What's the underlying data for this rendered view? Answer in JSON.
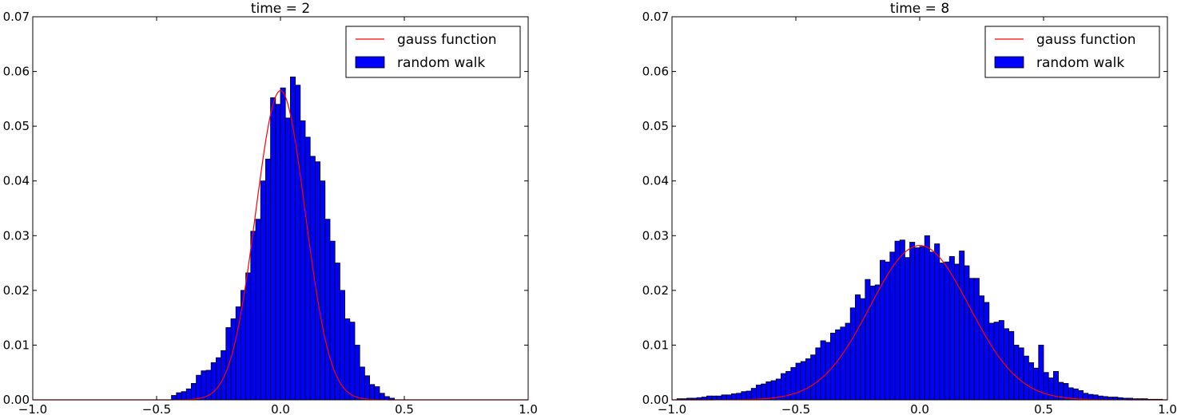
{
  "chart_data": [
    {
      "type": "bar",
      "title": "time = 2",
      "xlim": [
        -1.0,
        1.0
      ],
      "ylim": [
        0,
        0.07
      ],
      "xticks": [
        "−1.0",
        "−0.5",
        "0.0",
        "0.5",
        "1.0"
      ],
      "yticks": [
        "0.00",
        "0.01",
        "0.02",
        "0.03",
        "0.04",
        "0.05",
        "0.06",
        "0.07"
      ],
      "legend_position": "top-right",
      "grid": false,
      "series": [
        {
          "name": "random walk",
          "kind": "histogram",
          "color": "#0000ff",
          "bin_width": 0.02,
          "bins": [
            [
              -0.44,
              0.0008
            ],
            [
              -0.42,
              0.0013
            ],
            [
              -0.4,
              0.0015
            ],
            [
              -0.38,
              0.002
            ],
            [
              -0.36,
              0.003
            ],
            [
              -0.34,
              0.0045
            ],
            [
              -0.32,
              0.0053
            ],
            [
              -0.3,
              0.0054
            ],
            [
              -0.28,
              0.0068
            ],
            [
              -0.26,
              0.0077
            ],
            [
              -0.24,
              0.009
            ],
            [
              -0.22,
              0.0132
            ],
            [
              -0.2,
              0.0148
            ],
            [
              -0.18,
              0.017
            ],
            [
              -0.16,
              0.02
            ],
            [
              -0.14,
              0.0232
            ],
            [
              -0.12,
              0.0308
            ],
            [
              -0.1,
              0.033
            ],
            [
              -0.08,
              0.04
            ],
            [
              -0.06,
              0.044
            ],
            [
              -0.04,
              0.0552
            ],
            [
              -0.02,
              0.054
            ],
            [
              0.0,
              0.057
            ],
            [
              0.02,
              0.0515
            ],
            [
              0.04,
              0.059
            ],
            [
              0.06,
              0.0575
            ],
            [
              0.08,
              0.051
            ],
            [
              0.1,
              0.048
            ],
            [
              0.12,
              0.0445
            ],
            [
              0.14,
              0.0435
            ],
            [
              0.16,
              0.04
            ],
            [
              0.18,
              0.033
            ],
            [
              0.2,
              0.029
            ],
            [
              0.22,
              0.025
            ],
            [
              0.24,
              0.02
            ],
            [
              0.26,
              0.0148
            ],
            [
              0.28,
              0.0142
            ],
            [
              0.3,
              0.01
            ],
            [
              0.32,
              0.006
            ],
            [
              0.34,
              0.0044
            ],
            [
              0.36,
              0.0028
            ],
            [
              0.38,
              0.0024
            ],
            [
              0.4,
              0.0012
            ],
            [
              0.42,
              0.0006
            ],
            [
              0.44,
              0.0003
            ]
          ]
        },
        {
          "name": "gauss function",
          "kind": "line",
          "color": "#ff0000",
          "amplitude": 0.0565,
          "mean": 0.0,
          "sigma": 0.1
        }
      ]
    },
    {
      "type": "bar",
      "title": "time = 8",
      "xlim": [
        -1.0,
        1.0
      ],
      "ylim": [
        0,
        0.07
      ],
      "xticks": [
        "−1.0",
        "−0.5",
        "0.0",
        "0.5",
        "1.0"
      ],
      "yticks": [
        "0.00",
        "0.01",
        "0.02",
        "0.03",
        "0.04",
        "0.05",
        "0.06",
        "0.07"
      ],
      "legend_position": "top-right",
      "grid": false,
      "series": [
        {
          "name": "random walk",
          "kind": "histogram",
          "color": "#0000ff",
          "bin_width": 0.02,
          "bins": [
            [
              -0.98,
              0.0002
            ],
            [
              -0.96,
              0.0002
            ],
            [
              -0.94,
              0.0003
            ],
            [
              -0.92,
              0.0003
            ],
            [
              -0.9,
              0.0004
            ],
            [
              -0.88,
              0.0005
            ],
            [
              -0.86,
              0.0007
            ],
            [
              -0.84,
              0.0007
            ],
            [
              -0.82,
              0.0007
            ],
            [
              -0.8,
              0.0009
            ],
            [
              -0.78,
              0.0009
            ],
            [
              -0.76,
              0.0011
            ],
            [
              -0.74,
              0.0012
            ],
            [
              -0.72,
              0.0015
            ],
            [
              -0.7,
              0.0016
            ],
            [
              -0.68,
              0.0021
            ],
            [
              -0.66,
              0.0027
            ],
            [
              -0.64,
              0.0029
            ],
            [
              -0.62,
              0.0033
            ],
            [
              -0.6,
              0.0035
            ],
            [
              -0.58,
              0.0038
            ],
            [
              -0.56,
              0.0048
            ],
            [
              -0.54,
              0.0052
            ],
            [
              -0.52,
              0.0059
            ],
            [
              -0.5,
              0.0067
            ],
            [
              -0.48,
              0.007
            ],
            [
              -0.46,
              0.0075
            ],
            [
              -0.44,
              0.0082
            ],
            [
              -0.42,
              0.0095
            ],
            [
              -0.4,
              0.0108
            ],
            [
              -0.38,
              0.0105
            ],
            [
              -0.36,
              0.0122
            ],
            [
              -0.34,
              0.0128
            ],
            [
              -0.32,
              0.0133
            ],
            [
              -0.3,
              0.014
            ],
            [
              -0.28,
              0.0168
            ],
            [
              -0.26,
              0.0192
            ],
            [
              -0.24,
              0.0185
            ],
            [
              -0.22,
              0.022
            ],
            [
              -0.2,
              0.0208
            ],
            [
              -0.18,
              0.021
            ],
            [
              -0.16,
              0.0255
            ],
            [
              -0.14,
              0.0252
            ],
            [
              -0.12,
              0.027
            ],
            [
              -0.1,
              0.029
            ],
            [
              -0.08,
              0.0292
            ],
            [
              -0.06,
              0.026
            ],
            [
              -0.04,
              0.0288
            ],
            [
              -0.02,
              0.0278
            ],
            [
              0.0,
              0.028
            ],
            [
              0.02,
              0.03
            ],
            [
              0.04,
              0.027
            ],
            [
              0.06,
              0.0285
            ],
            [
              0.08,
              0.025
            ],
            [
              0.1,
              0.0252
            ],
            [
              0.12,
              0.0262
            ],
            [
              0.14,
              0.0248
            ],
            [
              0.16,
              0.0272
            ],
            [
              0.18,
              0.0245
            ],
            [
              0.2,
              0.0222
            ],
            [
              0.22,
              0.0222
            ],
            [
              0.24,
              0.019
            ],
            [
              0.26,
              0.0178
            ],
            [
              0.28,
              0.014
            ],
            [
              0.3,
              0.0142
            ],
            [
              0.32,
              0.0145
            ],
            [
              0.34,
              0.013
            ],
            [
              0.36,
              0.0125
            ],
            [
              0.38,
              0.01
            ],
            [
              0.4,
              0.0095
            ],
            [
              0.42,
              0.008
            ],
            [
              0.44,
              0.0068
            ],
            [
              0.46,
              0.0058
            ],
            [
              0.48,
              0.01
            ],
            [
              0.5,
              0.005
            ],
            [
              0.52,
              0.004
            ],
            [
              0.54,
              0.0052
            ],
            [
              0.56,
              0.0032
            ],
            [
              0.58,
              0.003
            ],
            [
              0.6,
              0.0022
            ],
            [
              0.62,
              0.002
            ],
            [
              0.64,
              0.0017
            ],
            [
              0.66,
              0.0012
            ],
            [
              0.68,
              0.001
            ],
            [
              0.7,
              0.0009
            ],
            [
              0.72,
              0.0007
            ],
            [
              0.74,
              0.0006
            ],
            [
              0.76,
              0.0005
            ],
            [
              0.78,
              0.0005
            ],
            [
              0.8,
              0.0004
            ],
            [
              0.82,
              0.0003
            ],
            [
              0.84,
              0.0003
            ],
            [
              0.86,
              0.0002
            ],
            [
              0.88,
              0.0002
            ],
            [
              0.9,
              0.0002
            ],
            [
              0.92,
              0.0001
            ],
            [
              0.94,
              0.0001
            ],
            [
              0.96,
              0.0001
            ]
          ]
        },
        {
          "name": "gauss function",
          "kind": "line",
          "color": "#ff0000",
          "amplitude": 0.0282,
          "mean": 0.0,
          "sigma": 0.2
        }
      ]
    }
  ]
}
